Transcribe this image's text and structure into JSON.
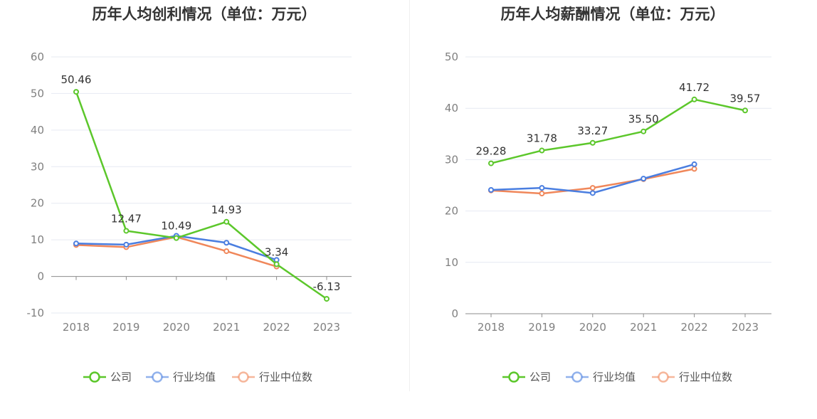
{
  "chart_data": [
    {
      "type": "line",
      "title": "历年人均创利情况（单位：万元）",
      "categories": [
        "2018",
        "2019",
        "2020",
        "2021",
        "2022",
        "2023"
      ],
      "ylim": [
        -10,
        60
      ],
      "yticks": [
        "-10",
        "0",
        "10",
        "20",
        "30",
        "40",
        "50",
        "60"
      ],
      "grid": true,
      "legend_position": "bottom",
      "series": [
        {
          "name": "公司",
          "color": "#5cc72b",
          "values": [
            50.46,
            12.47,
            10.49,
            14.93,
            3.34,
            -6.13
          ],
          "labels": [
            "50.46",
            "12.47",
            "10.49",
            "14.93",
            "3.34",
            "-6.13"
          ]
        },
        {
          "name": "行业均值",
          "color": "#4a7ee0",
          "values": [
            9.0,
            8.7,
            11.1,
            9.2,
            4.5,
            null
          ]
        },
        {
          "name": "行业中位数",
          "color": "#f0875a",
          "values": [
            8.6,
            8.0,
            10.8,
            6.9,
            2.7,
            null
          ]
        }
      ]
    },
    {
      "type": "line",
      "title": "历年人均薪酬情况（单位：万元）",
      "categories": [
        "2018",
        "2019",
        "2020",
        "2021",
        "2022",
        "2023"
      ],
      "ylim": [
        0,
        50
      ],
      "yticks": [
        "0",
        "10",
        "20",
        "30",
        "40",
        "50"
      ],
      "grid": true,
      "legend_position": "bottom",
      "series": [
        {
          "name": "公司",
          "color": "#5cc72b",
          "values": [
            29.28,
            31.78,
            33.27,
            35.5,
            41.72,
            39.57
          ],
          "labels": [
            "29.28",
            "31.78",
            "33.27",
            "35.50",
            "41.72",
            "39.57"
          ]
        },
        {
          "name": "行业均值",
          "color": "#4a7ee0",
          "values": [
            24.1,
            24.5,
            23.5,
            26.3,
            29.1,
            null
          ]
        },
        {
          "name": "行业中位数",
          "color": "#f0875a",
          "values": [
            24.0,
            23.4,
            24.5,
            26.2,
            28.2,
            null
          ]
        }
      ]
    }
  ]
}
